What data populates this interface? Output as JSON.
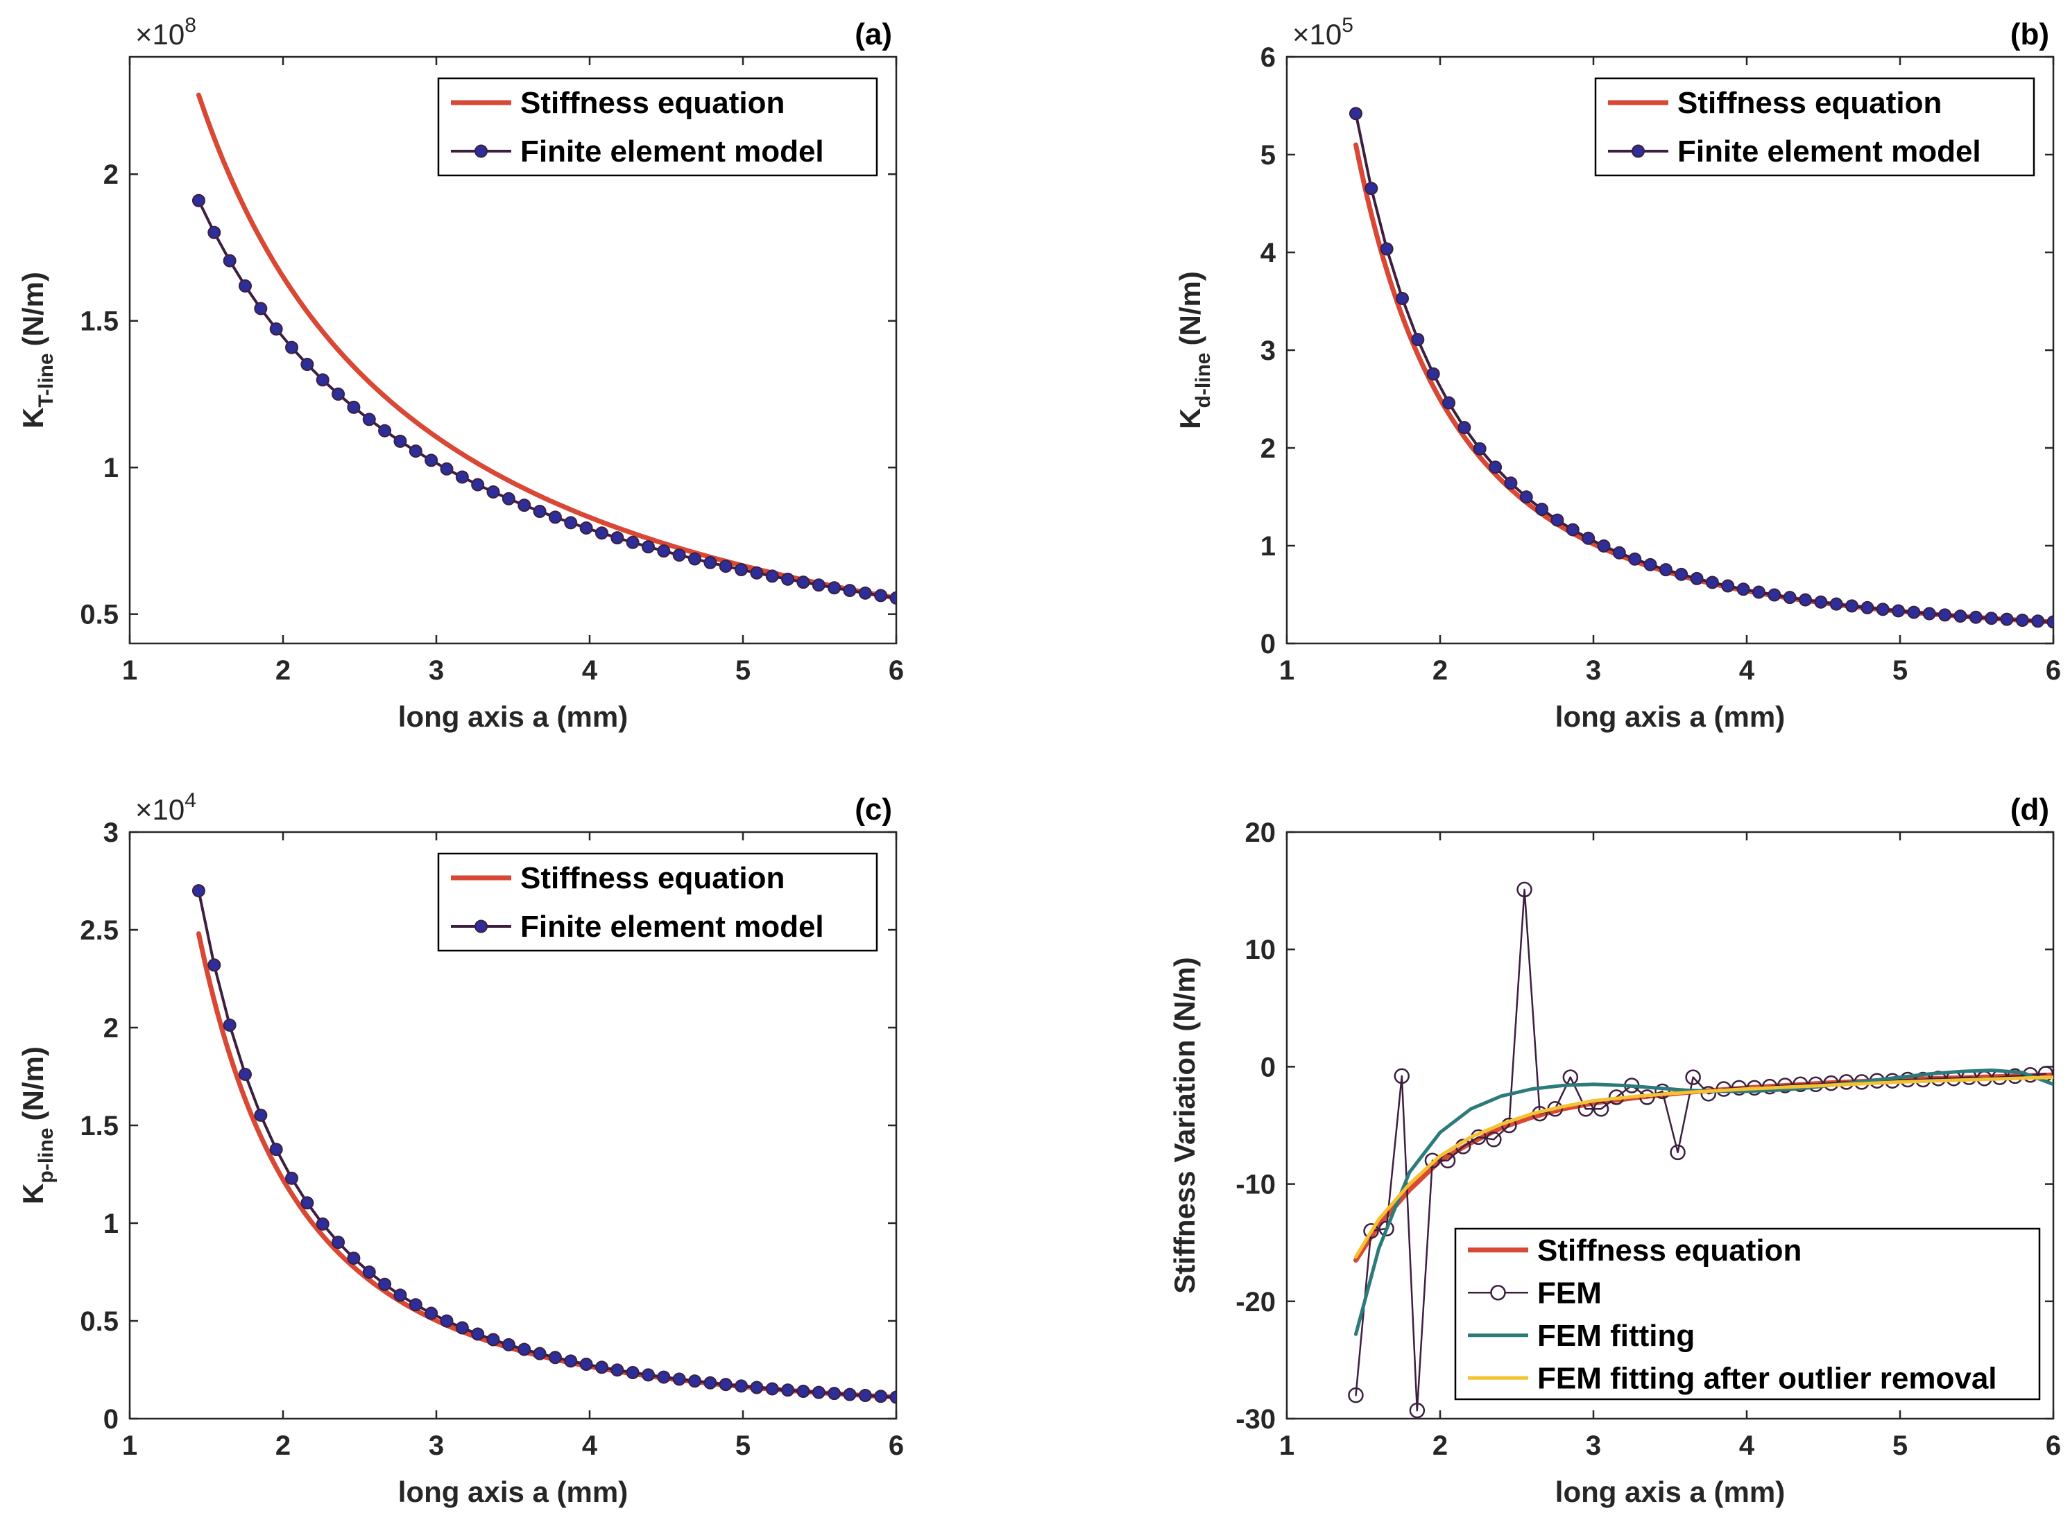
{
  "colors": {
    "stiffness_equation": "#d94835",
    "fem_line": "#3c1f3f",
    "fem_marker": "#2e2e9a",
    "fem_fitting": "#2c7b7a",
    "fem_fitting_outlier": "#f5c232",
    "axis": "#262626"
  },
  "chart_data": [
    {
      "type": "line",
      "panel": "(a)",
      "xlabel": "long axis a (mm)",
      "ylabel_main": "K",
      "ylabel_sub": "T-line",
      "ylabel_unit": "(N/m)",
      "exponent_base": "×10",
      "exponent": "8",
      "xlim": [
        1,
        6
      ],
      "ylim": [
        0.4,
        2.4
      ],
      "xticks": [
        "1",
        "2",
        "3",
        "4",
        "5",
        "6"
      ],
      "yticks": [
        "0.5",
        "1",
        "1.5",
        "2"
      ],
      "ytick_values": [
        0.5,
        1,
        1.5,
        2
      ],
      "legend": [
        "Stiffness equation",
        "Finite element model"
      ],
      "series": [
        {
          "name": "Stiffness equation",
          "model": "power",
          "x_range": [
            1.45,
            6
          ],
          "y_at_start": 2.27,
          "y_at_end": 0.555,
          "exponent": -0.99
        },
        {
          "name": "Finite element model",
          "model": "power",
          "x_range": [
            1.45,
            6
          ],
          "y_at_start": 1.91,
          "y_at_end": 0.555,
          "exponent": -0.87,
          "markers": true,
          "step": 0.1
        }
      ]
    },
    {
      "type": "line",
      "panel": "(b)",
      "xlabel": "long axis a (mm)",
      "ylabel_main": "K",
      "ylabel_sub": "d-line",
      "ylabel_unit": "(N/m)",
      "exponent_base": "×10",
      "exponent": "5",
      "xlim": [
        1,
        6
      ],
      "ylim": [
        0,
        6
      ],
      "xticks": [
        "1",
        "2",
        "3",
        "4",
        "5",
        "6"
      ],
      "yticks": [
        "0",
        "1",
        "2",
        "3",
        "4",
        "5",
        "6"
      ],
      "ytick_values": [
        0,
        1,
        2,
        3,
        4,
        5,
        6
      ],
      "legend": [
        "Stiffness equation",
        "Finite element model"
      ],
      "series": [
        {
          "name": "Stiffness equation",
          "model": "power",
          "x_range": [
            1.45,
            6
          ],
          "y_at_start": 5.1,
          "y_at_end": 0.22,
          "exponent": -2.22
        },
        {
          "name": "Finite element model",
          "model": "power",
          "x_range": [
            1.45,
            6
          ],
          "y_at_start": 5.42,
          "y_at_end": 0.22,
          "exponent": -2.26,
          "markers": true,
          "step": 0.1
        }
      ]
    },
    {
      "type": "line",
      "panel": "(c)",
      "xlabel": "long axis a (mm)",
      "ylabel_main": "K",
      "ylabel_sub": "p-line",
      "ylabel_unit": "(N/m)",
      "exponent_base": "×10",
      "exponent": "4",
      "xlim": [
        1,
        6
      ],
      "ylim": [
        0,
        3
      ],
      "xticks": [
        "1",
        "2",
        "3",
        "4",
        "5",
        "6"
      ],
      "yticks": [
        "0",
        "0.5",
        "1",
        "1.5",
        "2",
        "2.5",
        "3"
      ],
      "ytick_values": [
        0,
        0.5,
        1,
        1.5,
        2,
        2.5,
        3
      ],
      "legend": [
        "Stiffness equation",
        "Finite element model"
      ],
      "series": [
        {
          "name": "Stiffness equation",
          "model": "power",
          "x_range": [
            1.45,
            6
          ],
          "y_at_start": 2.48,
          "y_at_end": 0.11,
          "exponent": -2.2
        },
        {
          "name": "Finite element model",
          "model": "power",
          "x_range": [
            1.45,
            6
          ],
          "y_at_start": 2.7,
          "y_at_end": 0.11,
          "exponent": -2.25,
          "markers": true,
          "step": 0.1
        }
      ]
    },
    {
      "type": "line",
      "panel": "(d)",
      "xlabel": "long axis a (mm)",
      "ylabel": "Stiffness Variation (N/m)",
      "xlim": [
        1,
        6
      ],
      "ylim": [
        -30,
        20
      ],
      "xticks": [
        "1",
        "2",
        "3",
        "4",
        "5",
        "6"
      ],
      "yticks": [
        "-30",
        "-20",
        "-10",
        "0",
        "10",
        "20"
      ],
      "ytick_values": [
        -30,
        -20,
        -10,
        0,
        10,
        20
      ],
      "legend": [
        "Stiffness equation",
        "FEM",
        "FEM fitting",
        "FEM fitting after outlier removal"
      ],
      "series": [
        {
          "name": "Stiffness equation",
          "x": [
            1.45,
            1.6,
            1.8,
            2.0,
            2.2,
            2.4,
            2.6,
            2.8,
            3.0,
            3.3,
            3.6,
            4.0,
            4.5,
            5.0,
            5.5,
            6.0
          ],
          "y": [
            -16.5,
            -13.5,
            -10.5,
            -8.0,
            -6.5,
            -5.2,
            -4.3,
            -3.6,
            -3.1,
            -2.6,
            -2.2,
            -1.8,
            -1.4,
            -1.1,
            -0.9,
            -0.7
          ]
        },
        {
          "name": "FEM",
          "x": [
            1.45,
            1.55,
            1.65,
            1.75,
            1.85,
            1.95,
            2.05,
            2.15,
            2.25,
            2.35,
            2.45,
            2.55,
            2.65,
            2.75,
            2.85,
            2.95,
            3.05,
            3.15,
            3.25,
            3.35,
            3.45,
            3.55,
            3.65,
            3.75,
            3.85,
            3.95,
            4.05,
            4.15,
            4.25,
            4.35,
            4.45,
            4.55,
            4.65,
            4.75,
            4.85,
            4.95,
            5.05,
            5.15,
            5.25,
            5.35,
            5.45,
            5.55,
            5.65,
            5.75,
            5.85,
            5.95
          ],
          "y": [
            -28.0,
            -14.0,
            -13.8,
            -0.8,
            -29.3,
            -8.0,
            -8.0,
            -6.8,
            -6.0,
            -6.2,
            -5.0,
            15.1,
            -4.0,
            -3.6,
            -0.9,
            -3.6,
            -3.6,
            -2.6,
            -1.6,
            -2.6,
            -2.1,
            -7.3,
            -0.9,
            -2.3,
            -1.9,
            -1.8,
            -1.8,
            -1.7,
            -1.6,
            -1.5,
            -1.5,
            -1.4,
            -1.3,
            -1.3,
            -1.2,
            -1.2,
            -1.1,
            -1.1,
            -1.0,
            -1.0,
            -0.9,
            -1.0,
            -0.9,
            -0.8,
            -0.7,
            -0.6
          ]
        },
        {
          "name": "FEM fitting",
          "x": [
            1.45,
            1.6,
            1.8,
            2.0,
            2.2,
            2.4,
            2.6,
            2.8,
            3.0,
            3.2,
            3.4,
            3.6,
            3.8,
            4.0,
            4.2,
            4.4,
            4.6,
            4.8,
            5.0,
            5.2,
            5.4,
            5.6,
            5.8,
            6.0
          ],
          "y": [
            -22.8,
            -15.5,
            -9.0,
            -5.6,
            -3.6,
            -2.5,
            -1.9,
            -1.6,
            -1.5,
            -1.6,
            -1.8,
            -2.0,
            -2.1,
            -2.1,
            -2.0,
            -1.8,
            -1.5,
            -1.2,
            -0.9,
            -0.6,
            -0.4,
            -0.3,
            -0.5,
            -1.5
          ]
        },
        {
          "name": "FEM fitting after outlier removal",
          "x": [
            1.45,
            1.6,
            1.8,
            2.0,
            2.2,
            2.4,
            2.6,
            2.8,
            3.0,
            3.3,
            3.6,
            4.0,
            4.5,
            5.0,
            5.5,
            6.0
          ],
          "y": [
            -16.2,
            -13.0,
            -10.0,
            -7.6,
            -6.0,
            -4.9,
            -4.0,
            -3.4,
            -2.9,
            -2.5,
            -2.2,
            -1.9,
            -1.6,
            -1.3,
            -1.1,
            -0.9
          ]
        }
      ]
    }
  ]
}
